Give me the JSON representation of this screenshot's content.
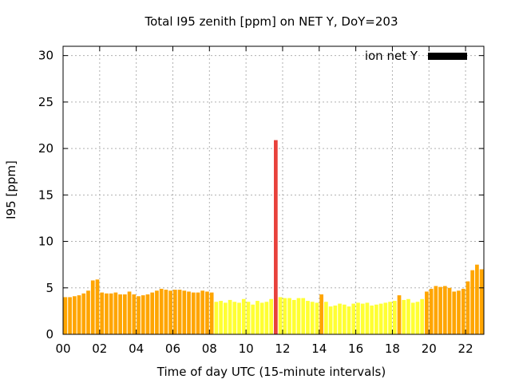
{
  "chart_data": {
    "type": "bar",
    "title": "Total I95 zenith [ppm] on NET Y, DoY=203",
    "xlabel": "Time of day UTC (15-minute intervals)",
    "ylabel": "I95 [ppm]",
    "xlim": [
      0,
      23
    ],
    "ylim": [
      0,
      31
    ],
    "xticks": [
      "00",
      "02",
      "04",
      "06",
      "08",
      "10",
      "12",
      "14",
      "16",
      "18",
      "20",
      "22"
    ],
    "yticks": [
      "0",
      "5",
      "10",
      "15",
      "20",
      "25",
      "30"
    ],
    "grid": true,
    "legend": {
      "position": "top-right",
      "label": "ion net Y",
      "color": "#000000"
    },
    "colors": {
      "low": "#ffff33",
      "medium": "#ffa500",
      "high": "#e8413b"
    },
    "bar_interval_hours": 0.25,
    "series": [
      {
        "values": [
          4.0,
          4.0,
          4.1,
          4.2,
          4.4,
          4.7,
          5.8,
          5.9,
          4.5,
          4.4,
          4.4,
          4.5,
          4.3,
          4.3,
          4.6,
          4.3,
          4.1,
          4.2,
          4.3,
          4.5,
          4.7,
          4.9,
          4.8,
          4.7,
          4.8,
          4.8,
          4.7,
          4.6,
          4.5,
          4.5,
          4.7,
          4.6,
          4.5,
          3.5,
          3.6,
          3.4,
          3.7,
          3.5,
          3.4,
          3.8,
          3.5,
          3.2,
          3.6,
          3.4,
          3.5,
          3.8,
          20.9,
          4.0,
          3.9,
          3.9,
          3.7,
          3.9,
          3.9,
          3.6,
          3.5,
          3.4,
          4.3,
          3.5,
          3.0,
          3.1,
          3.3,
          3.2,
          3.0,
          3.3,
          3.4,
          3.3,
          3.4,
          3.1,
          3.2,
          3.3,
          3.4,
          3.5,
          3.6,
          4.2,
          3.7,
          3.8,
          3.4,
          3.5,
          3.8,
          4.6,
          4.9,
          5.2,
          5.1,
          5.2,
          5.0,
          4.6,
          4.7,
          4.9,
          5.7,
          6.9,
          7.5,
          7.0
        ],
        "levels": [
          "medium",
          "medium",
          "medium",
          "medium",
          "medium",
          "medium",
          "medium",
          "medium",
          "medium",
          "medium",
          "medium",
          "medium",
          "medium",
          "medium",
          "medium",
          "medium",
          "medium",
          "medium",
          "medium",
          "medium",
          "medium",
          "medium",
          "medium",
          "medium",
          "medium",
          "medium",
          "medium",
          "medium",
          "medium",
          "medium",
          "medium",
          "medium",
          "medium",
          "low",
          "low",
          "low",
          "low",
          "low",
          "low",
          "low",
          "low",
          "low",
          "low",
          "low",
          "low",
          "low",
          "high",
          "low",
          "low",
          "low",
          "low",
          "low",
          "low",
          "low",
          "low",
          "low",
          "medium",
          "low",
          "low",
          "low",
          "low",
          "low",
          "low",
          "low",
          "low",
          "low",
          "low",
          "low",
          "low",
          "low",
          "low",
          "low",
          "low",
          "medium",
          "low",
          "low",
          "low",
          "low",
          "low",
          "medium",
          "medium",
          "medium",
          "medium",
          "medium",
          "medium",
          "medium",
          "medium",
          "medium",
          "medium",
          "medium",
          "medium",
          "medium"
        ]
      }
    ]
  }
}
